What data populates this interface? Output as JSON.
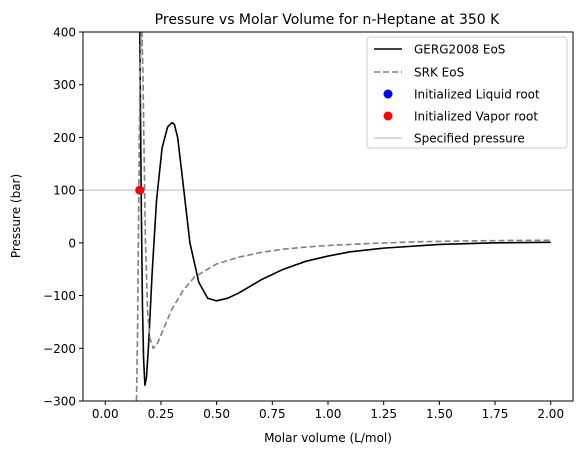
{
  "chart_data": {
    "type": "line",
    "title": "Pressure vs Molar Volume for n-Heptane at 350 K",
    "xlabel": "Molar volume (L/mol)",
    "ylabel": "Pressure (bar)",
    "xlim": [
      -0.1,
      2.1
    ],
    "ylim": [
      -300,
      400
    ],
    "xticks": [
      "0.00",
      "0.25",
      "0.50",
      "0.75",
      "1.00",
      "1.25",
      "1.50",
      "1.75",
      "2.00"
    ],
    "yticks": [
      "400",
      "300",
      "200",
      "100",
      "0",
      "−100",
      "−200",
      "−300"
    ],
    "grid": false,
    "legend_position": "top-right",
    "series": [
      {
        "name": "GERG2008 EoS",
        "style": "solid",
        "color": "#000000",
        "x": [
          0.155,
          0.158,
          0.162,
          0.167,
          0.172,
          0.178,
          0.185,
          0.195,
          0.21,
          0.23,
          0.255,
          0.28,
          0.3,
          0.31,
          0.325,
          0.35,
          0.38,
          0.42,
          0.46,
          0.5,
          0.55,
          0.6,
          0.7,
          0.8,
          0.9,
          1.0,
          1.1,
          1.25,
          1.5,
          1.75,
          2.0
        ],
        "y": [
          400,
          250,
          60,
          -120,
          -220,
          -270,
          -255,
          -190,
          -60,
          80,
          180,
          220,
          228,
          225,
          200,
          110,
          0,
          -75,
          -105,
          -110,
          -105,
          -95,
          -70,
          -50,
          -35,
          -25,
          -17,
          -10,
          -3,
          0,
          1
        ]
      },
      {
        "name": "SRK EoS",
        "style": "dashed",
        "color": "#808080",
        "x": [
          0.14,
          0.145,
          0.15,
          0.155,
          0.16,
          0.165,
          0.17,
          0.175,
          0.18,
          0.19,
          0.2,
          0.215,
          0.23,
          0.26,
          0.3,
          0.35,
          0.4,
          0.5,
          0.6,
          0.7,
          0.8,
          0.9,
          1.0,
          1.2,
          1.4,
          1.6,
          1.8,
          2.0
        ],
        "y": [
          -300,
          -170,
          70,
          280,
          400,
          400,
          300,
          150,
          10,
          -130,
          -180,
          -200,
          -195,
          -165,
          -125,
          -90,
          -65,
          -40,
          -27,
          -18,
          -12,
          -8,
          -5,
          -1,
          2,
          3.5,
          4.5,
          5
        ]
      }
    ],
    "points": [
      {
        "name": "Initialized Liquid root",
        "color": "#0000ff",
        "x": 0.155,
        "y": 100
      },
      {
        "name": "Initialized Vapor root",
        "color": "#ff0000",
        "x": 0.155,
        "y": 100
      }
    ],
    "hline": {
      "name": "Specified pressure",
      "color": "#cccccc",
      "y": 100
    },
    "legend": [
      "GERG2008 EoS",
      "SRK EoS",
      "Initialized Liquid root",
      "Initialized Vapor root",
      "Specified pressure"
    ]
  }
}
